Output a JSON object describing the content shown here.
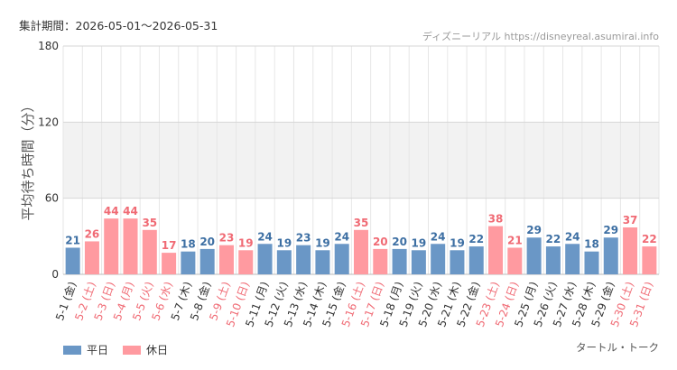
{
  "header": {
    "period_label": "集計期間：2026-05-01～2026-05-31",
    "credit": "ディズニーリアル https://disneyreal.asumirai.info"
  },
  "footer": {
    "source_label": "タートル・トーク"
  },
  "colors": {
    "weekday": "#6a97c6",
    "holiday": "#ff9aa0",
    "weekday_text": "#3d6fa3",
    "holiday_text": "#f06a74",
    "axis_text": "#333333",
    "band": "#f2f2f2",
    "grid": "#e6e6e6"
  },
  "chart_data": {
    "type": "bar",
    "title": "",
    "ylabel": "平均待ち時間（分）",
    "xlabel": "",
    "ylim": [
      0,
      180
    ],
    "yticks": [
      0,
      60,
      120,
      180
    ],
    "grid": true,
    "legend_position": "bottom-left",
    "legend": [
      {
        "label": "平日",
        "type": "weekday"
      },
      {
        "label": "休日",
        "type": "holiday"
      }
    ],
    "categories": [
      "5-1 (金)",
      "5-2 (土)",
      "5-3 (日)",
      "5-4 (月)",
      "5-5 (火)",
      "5-6 (水)",
      "5-7 (木)",
      "5-8 (金)",
      "5-9 (土)",
      "5-10 (日)",
      "5-11 (月)",
      "5-12 (火)",
      "5-13 (水)",
      "5-14 (木)",
      "5-15 (金)",
      "5-16 (土)",
      "5-17 (日)",
      "5-18 (月)",
      "5-19 (火)",
      "5-20 (水)",
      "5-21 (木)",
      "5-22 (金)",
      "5-23 (土)",
      "5-24 (日)",
      "5-25 (月)",
      "5-26 (火)",
      "5-27 (水)",
      "5-28 (木)",
      "5-29 (金)",
      "5-30 (土)",
      "5-31 (日)"
    ],
    "values": [
      21,
      26,
      44,
      44,
      35,
      17,
      18,
      20,
      23,
      19,
      24,
      19,
      23,
      19,
      24,
      35,
      20,
      20,
      19,
      24,
      19,
      22,
      38,
      21,
      29,
      22,
      24,
      18,
      29,
      37,
      22
    ],
    "day_type": [
      "weekday",
      "holiday",
      "holiday",
      "holiday",
      "holiday",
      "holiday",
      "weekday",
      "weekday",
      "holiday",
      "holiday",
      "weekday",
      "weekday",
      "weekday",
      "weekday",
      "weekday",
      "holiday",
      "holiday",
      "weekday",
      "weekday",
      "weekday",
      "weekday",
      "weekday",
      "holiday",
      "holiday",
      "weekday",
      "weekday",
      "weekday",
      "weekday",
      "weekday",
      "holiday",
      "holiday"
    ]
  }
}
